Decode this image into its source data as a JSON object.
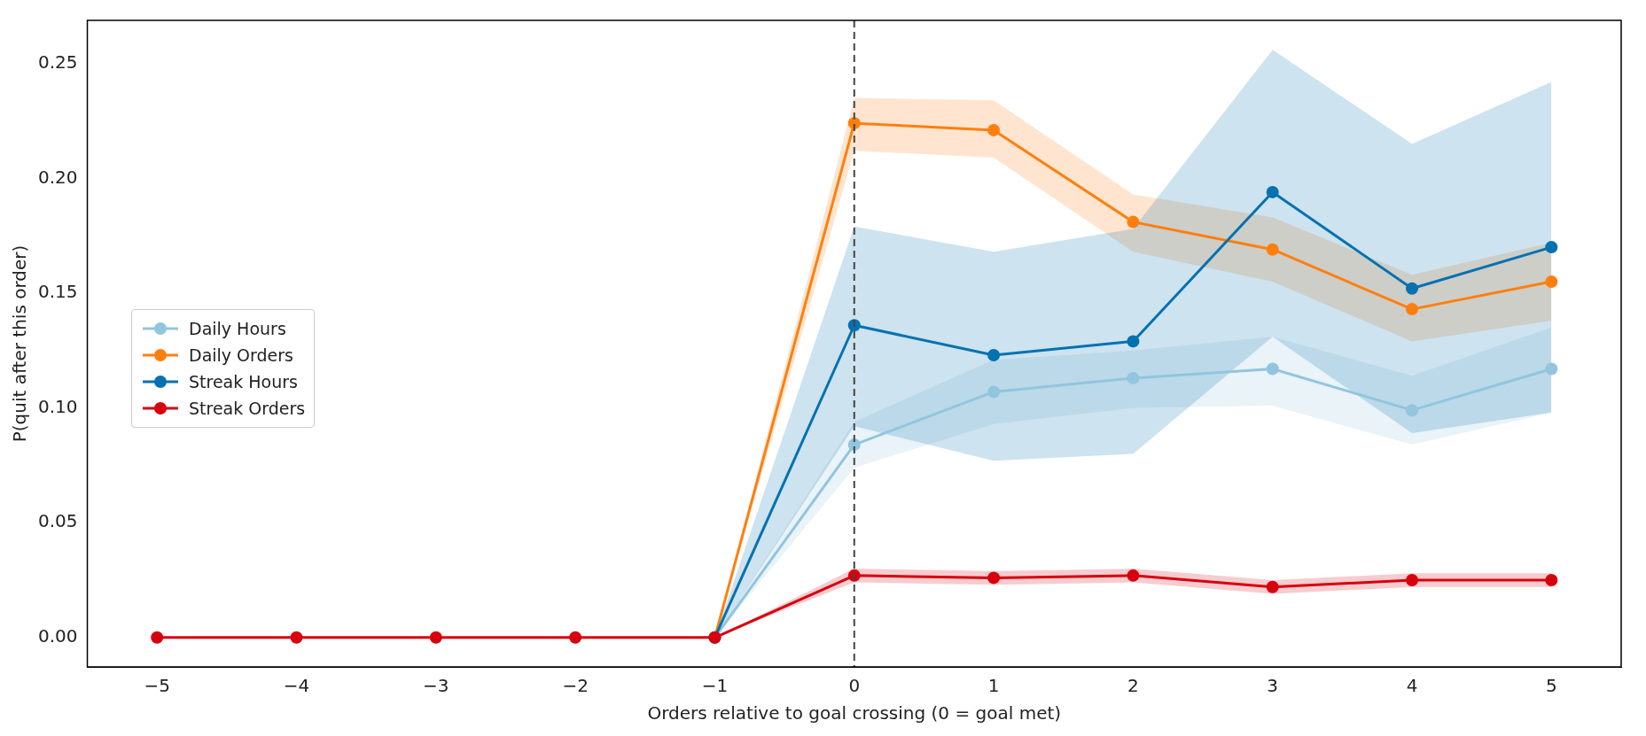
{
  "chart_data": {
    "type": "line",
    "xlabel": "Orders relative to goal crossing (0 = goal met)",
    "ylabel": "P(quit after this order)",
    "x": [
      -5,
      -4,
      -3,
      -2,
      -1,
      0,
      1,
      2,
      3,
      4,
      5
    ],
    "series": [
      {
        "name": "Daily Hours",
        "color": "#92c5de",
        "values": [
          null,
          null,
          null,
          null,
          0,
          0.084,
          0.107,
          0.113,
          0.117,
          0.099,
          0.117
        ],
        "lower": [
          0,
          0,
          0,
          0,
          0,
          0.074,
          0.093,
          0.1,
          0.101,
          0.084,
          0.098
        ],
        "upper": [
          0,
          0,
          0,
          0,
          0,
          0.094,
          0.121,
          0.125,
          0.131,
          0.114,
          0.135
        ]
      },
      {
        "name": "Daily Orders",
        "color": "#ff7f0e",
        "values": [
          null,
          null,
          null,
          null,
          0,
          0.224,
          0.221,
          0.181,
          0.169,
          0.143,
          0.155
        ],
        "lower": [
          0,
          0,
          0,
          0,
          0,
          0.212,
          0.209,
          0.168,
          0.155,
          0.129,
          0.138
        ],
        "upper": [
          0,
          0,
          0,
          0,
          0,
          0.235,
          0.234,
          0.193,
          0.183,
          0.158,
          0.172
        ]
      },
      {
        "name": "Streak Hours",
        "color": "#0571b0",
        "values": [
          null,
          null,
          null,
          null,
          0,
          0.136,
          0.123,
          0.129,
          0.194,
          0.152,
          0.17
        ],
        "lower": [
          0,
          0,
          0,
          0,
          0,
          0.092,
          0.077,
          0.08,
          0.131,
          0.089,
          0.098
        ],
        "upper": [
          0,
          0,
          0,
          0,
          0,
          0.179,
          0.168,
          0.178,
          0.256,
          0.215,
          0.242
        ]
      },
      {
        "name": "Streak Orders",
        "color": "#d7000f",
        "values": [
          0,
          0,
          0,
          0,
          0,
          0.027,
          0.026,
          0.027,
          0.022,
          0.025,
          0.025
        ],
        "lower": [
          0,
          0,
          0,
          0,
          0,
          0.024,
          0.023,
          0.024,
          0.019,
          0.022,
          0.022
        ],
        "upper": [
          0,
          0,
          0,
          0,
          0,
          0.03,
          0.029,
          0.03,
          0.025,
          0.028,
          0.028
        ]
      }
    ],
    "xlim": [
      -5.5,
      5.5
    ],
    "xticks": [
      {
        "value": -5,
        "label": "−5"
      },
      {
        "value": -4,
        "label": "−4"
      },
      {
        "value": -3,
        "label": "−3"
      },
      {
        "value": -2,
        "label": "−2"
      },
      {
        "value": -1,
        "label": "−1"
      },
      0,
      1,
      2,
      3,
      4,
      5
    ],
    "ylim": [
      -0.0128,
      0.2688
    ],
    "yticks": [
      {
        "value": 0,
        "label": "0.00"
      },
      {
        "value": 0.05,
        "label": "0.05"
      },
      {
        "value": 0.1,
        "label": "0.10"
      },
      {
        "value": 0.15,
        "label": "0.15"
      },
      {
        "value": 0.2,
        "label": "0.20"
      },
      {
        "value": 0.25,
        "label": "0.25"
      }
    ],
    "ref_lines": [
      {
        "axis": "x",
        "value": 0,
        "color": "#444444",
        "line_style": "dashed"
      }
    ],
    "marker": "circle",
    "line_style": "solid",
    "legend": "left",
    "grid": false
  }
}
